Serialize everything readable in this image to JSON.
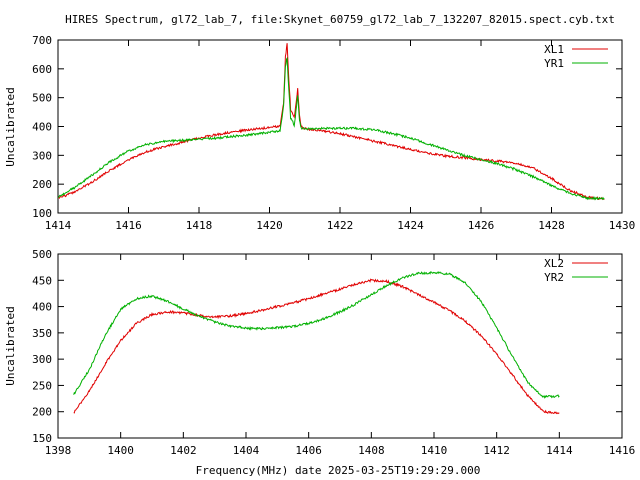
{
  "title": "HIRES Spectrum, gl72_lab_7, file:Skynet_60759_gl72_lab_7_132207_82015.spect.cyb.txt",
  "xlabel": "Frequency(MHz) date 2025-03-25T19:29:29.000",
  "colors": {
    "red": "#e00000",
    "green": "#00b000",
    "axis": "#000000"
  },
  "chart_data": [
    {
      "type": "line",
      "title": "HIRES Spectrum, gl72_lab_7, file:Skynet_60759_gl72_lab_7_132207_82015.spect.cyb.txt",
      "xlabel": "",
      "ylabel": "Uncalibrated",
      "xlim": [
        1414,
        1430
      ],
      "ylim": [
        100,
        700
      ],
      "xticks": [
        "1414",
        "1416",
        "1418",
        "1420",
        "1422",
        "1424",
        "1426",
        "1428",
        "1430"
      ],
      "yticks": [
        "100",
        "200",
        "300",
        "400",
        "500",
        "600",
        "700"
      ],
      "legend_position": "top-right",
      "grid": false,
      "series": [
        {
          "name": "XL1",
          "color": "#e00000",
          "x": [
            1414.0,
            1414.5,
            1415.0,
            1415.5,
            1416.0,
            1416.5,
            1417.0,
            1417.5,
            1418.0,
            1418.5,
            1419.0,
            1419.5,
            1420.0,
            1420.3,
            1420.4,
            1420.45,
            1420.5,
            1420.55,
            1420.6,
            1420.7,
            1420.75,
            1420.8,
            1420.85,
            1420.9,
            1421.0,
            1421.5,
            1422.0,
            1422.5,
            1423.0,
            1423.5,
            1424.0,
            1424.5,
            1425.0,
            1425.5,
            1426.0,
            1426.5,
            1427.0,
            1427.5,
            1428.0,
            1428.5,
            1429.0,
            1429.5
          ],
          "y": [
            150,
            175,
            210,
            250,
            285,
            312,
            330,
            345,
            360,
            372,
            382,
            390,
            396,
            402,
            480,
            640,
            685,
            560,
            460,
            430,
            480,
            530,
            440,
            400,
            392,
            385,
            375,
            362,
            348,
            335,
            320,
            308,
            298,
            292,
            285,
            280,
            272,
            255,
            220,
            180,
            155,
            148
          ]
        },
        {
          "name": "YR1",
          "color": "#00b000",
          "x": [
            1414.0,
            1414.5,
            1415.0,
            1415.5,
            1416.0,
            1416.5,
            1417.0,
            1417.5,
            1418.0,
            1418.5,
            1419.0,
            1419.5,
            1420.0,
            1420.3,
            1420.4,
            1420.45,
            1420.5,
            1420.55,
            1420.6,
            1420.7,
            1420.75,
            1420.8,
            1420.85,
            1420.9,
            1421.0,
            1421.5,
            1422.0,
            1422.5,
            1423.0,
            1423.5,
            1424.0,
            1424.5,
            1425.0,
            1425.5,
            1426.0,
            1426.5,
            1427.0,
            1427.5,
            1428.0,
            1428.5,
            1429.0,
            1429.5
          ],
          "y": [
            155,
            190,
            235,
            280,
            315,
            337,
            348,
            352,
            355,
            360,
            366,
            372,
            380,
            385,
            470,
            610,
            640,
            520,
            430,
            405,
            450,
            510,
            420,
            395,
            392,
            393,
            394,
            393,
            388,
            375,
            360,
            340,
            320,
            300,
            285,
            270,
            250,
            225,
            195,
            170,
            152,
            150
          ]
        }
      ]
    },
    {
      "type": "line",
      "title": "",
      "xlabel": "Frequency(MHz) date 2025-03-25T19:29:29.000",
      "ylabel": "Uncalibrated",
      "xlim": [
        1398,
        1416
      ],
      "ylim": [
        150,
        500
      ],
      "xticks": [
        "1398",
        "1400",
        "1402",
        "1404",
        "1406",
        "1408",
        "1410",
        "1412",
        "1414",
        "1416"
      ],
      "yticks": [
        "150",
        "200",
        "250",
        "300",
        "350",
        "400",
        "450",
        "500"
      ],
      "legend_position": "top-right",
      "grid": false,
      "series": [
        {
          "name": "XL2",
          "color": "#e00000",
          "x": [
            1398.5,
            1399.0,
            1399.5,
            1400.0,
            1400.5,
            1401.0,
            1401.5,
            1402.0,
            1402.5,
            1403.0,
            1403.5,
            1404.0,
            1404.5,
            1405.0,
            1405.5,
            1406.0,
            1406.5,
            1407.0,
            1407.5,
            1408.0,
            1408.5,
            1409.0,
            1409.5,
            1410.0,
            1410.5,
            1411.0,
            1411.5,
            1412.0,
            1412.5,
            1413.0,
            1413.5,
            1414.0
          ],
          "y": [
            197,
            240,
            290,
            335,
            368,
            385,
            390,
            388,
            383,
            380,
            382,
            387,
            393,
            400,
            407,
            415,
            424,
            433,
            443,
            450,
            448,
            438,
            423,
            408,
            392,
            372,
            345,
            310,
            270,
            230,
            200,
            197
          ]
        },
        {
          "name": "YR2",
          "color": "#00b000",
          "x": [
            1398.5,
            1399.0,
            1399.5,
            1400.0,
            1400.5,
            1401.0,
            1401.5,
            1402.0,
            1402.5,
            1403.0,
            1403.5,
            1404.0,
            1404.5,
            1405.0,
            1405.5,
            1406.0,
            1406.5,
            1407.0,
            1407.5,
            1408.0,
            1408.5,
            1409.0,
            1409.5,
            1410.0,
            1410.5,
            1411.0,
            1411.5,
            1412.0,
            1412.5,
            1413.0,
            1413.5,
            1414.0
          ],
          "y": [
            232,
            280,
            345,
            395,
            415,
            420,
            410,
            395,
            382,
            371,
            363,
            359,
            358,
            360,
            362,
            368,
            377,
            390,
            405,
            423,
            440,
            455,
            463,
            465,
            462,
            445,
            410,
            360,
            305,
            255,
            228,
            230
          ]
        }
      ]
    }
  ]
}
